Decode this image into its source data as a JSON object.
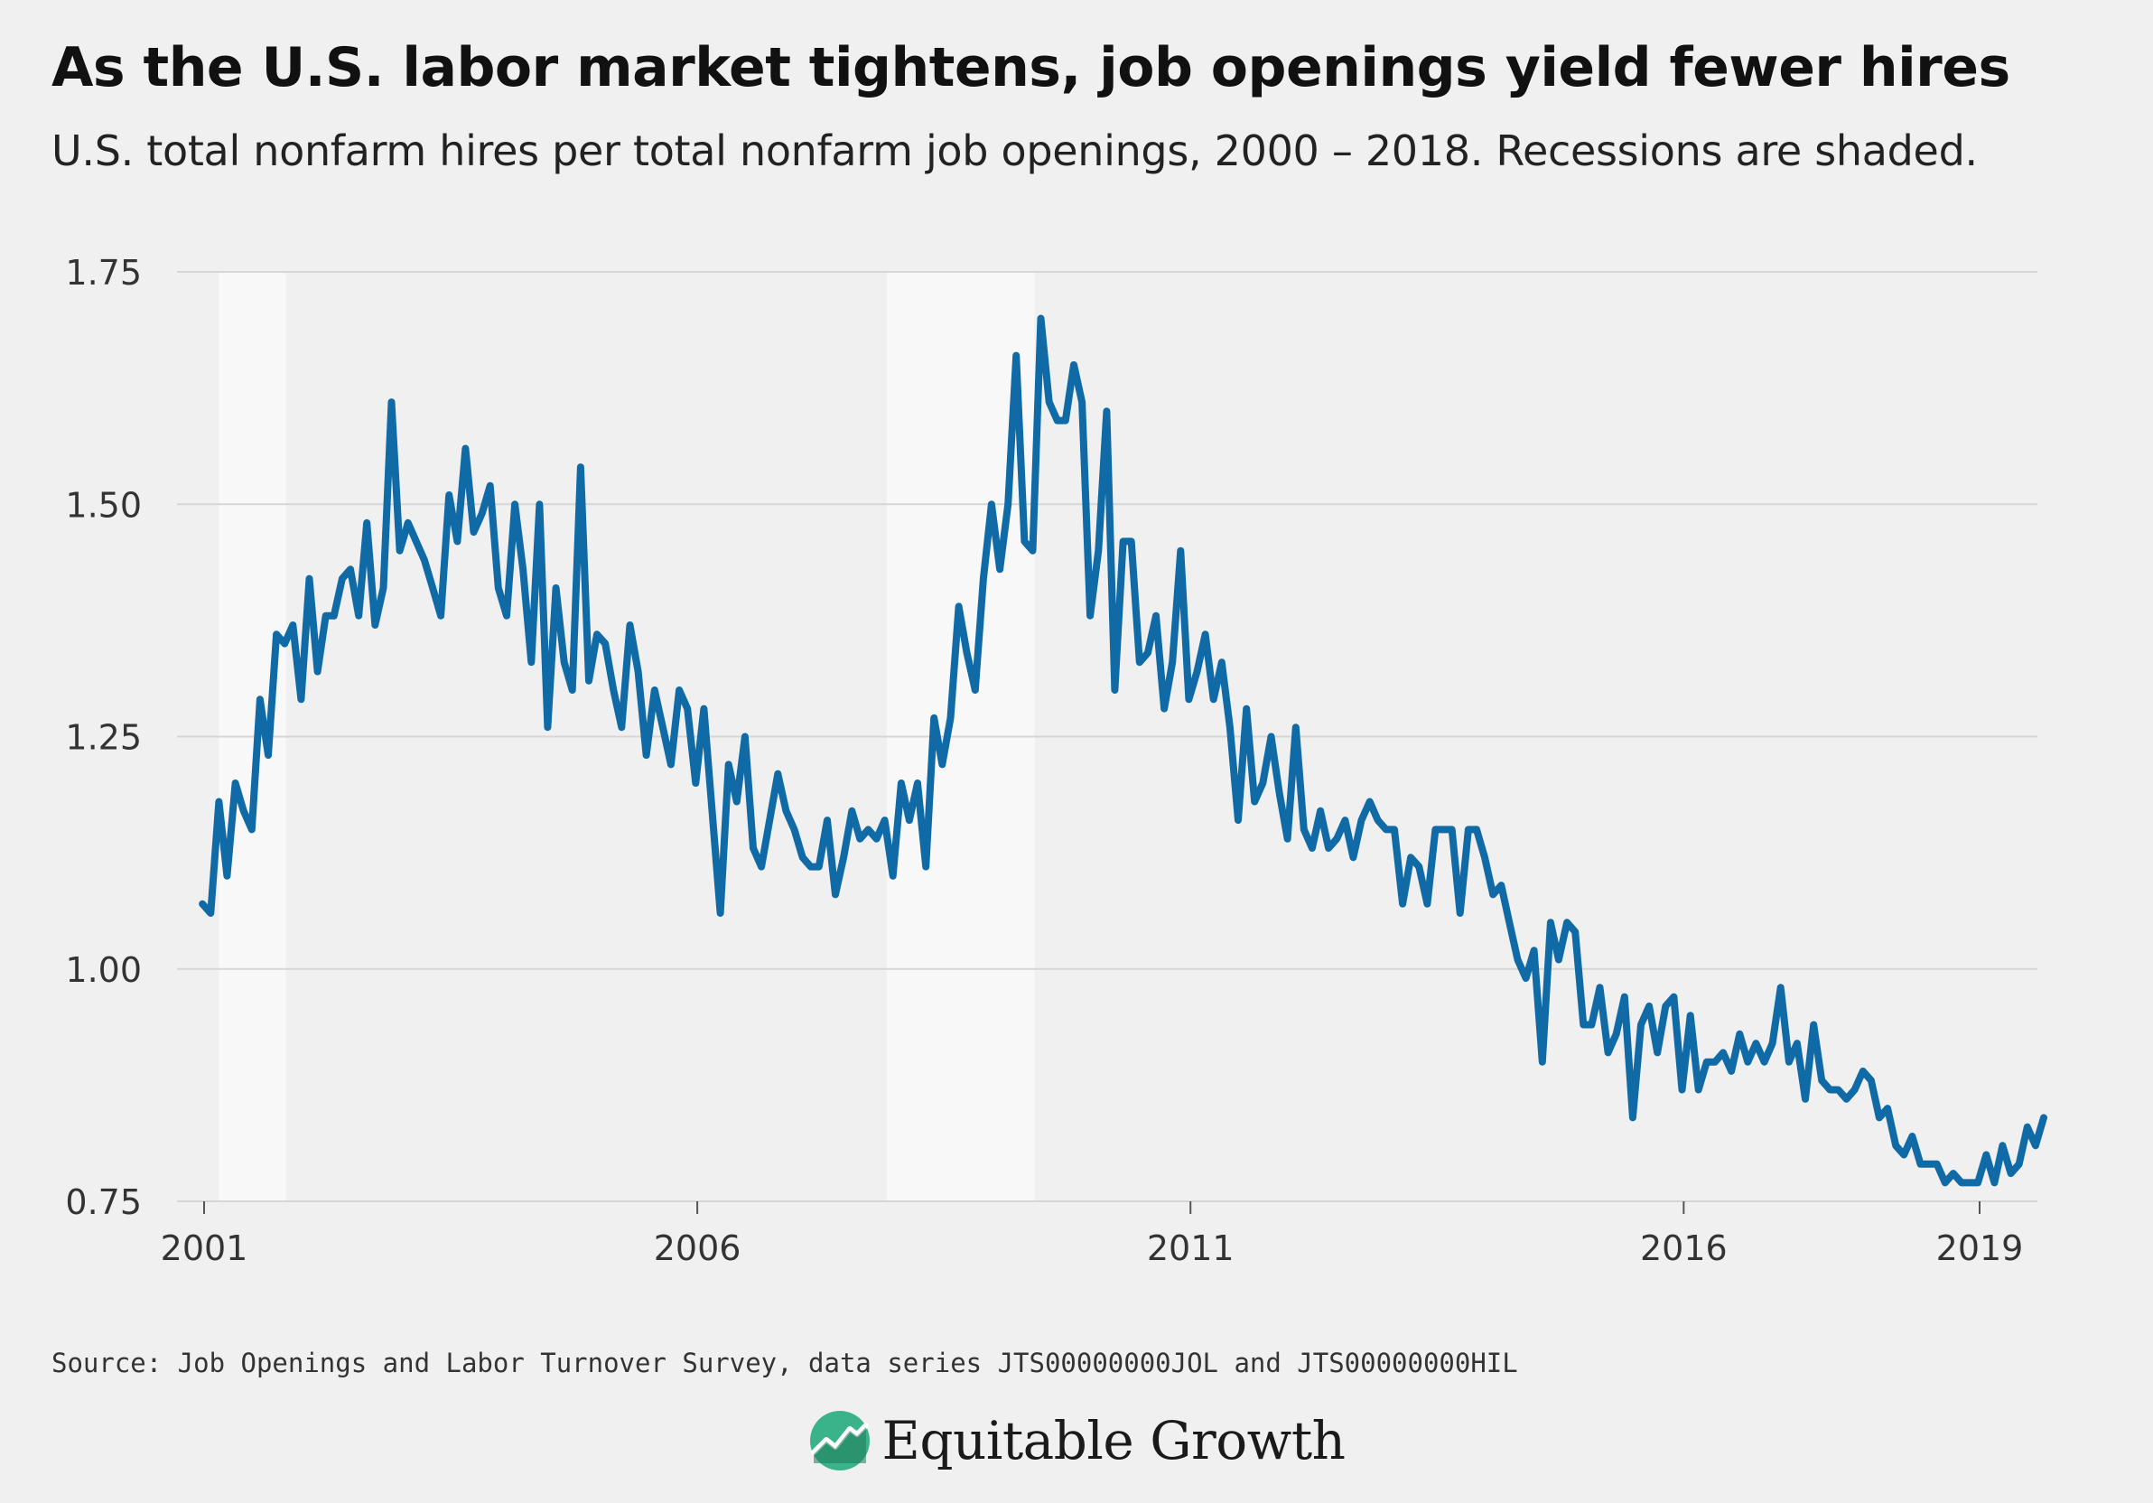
{
  "header": {
    "title": "As the U.S. labor market tightens, job openings yield fewer hires",
    "subtitle": "U.S. total nonfarm hires per total nonfarm job openings, 2000 – 2018. Recessions are shaded."
  },
  "footer": {
    "source": "Source: Job Openings and Labor Turnover Survey, data series JTS00000000JOL and JTS00000000HIL",
    "brand": "Equitable Growth"
  },
  "colors": {
    "line": "#0f6aa6",
    "background": "#f0f0f0",
    "recession": "#f8f8f8",
    "grid": "#d6d6d6",
    "logo": "#3bb38a"
  },
  "chart_data": {
    "type": "line",
    "title": "As the U.S. labor market tightens, job openings yield fewer hires",
    "subtitle": "U.S. total nonfarm hires per total nonfarm job openings, 2000 – 2018. Recessions are shaded.",
    "xlabel": "",
    "ylabel": "",
    "xlim": [
      2000.97,
      2019.6
    ],
    "ylim": [
      0.75,
      1.75
    ],
    "y_ticks": [
      "0.75",
      "1.00",
      "1.25",
      "1.50",
      "1.75"
    ],
    "y_tick_values": [
      0.75,
      1.0,
      1.25,
      1.5,
      1.75
    ],
    "x_ticks": [
      "2001",
      "2006",
      "2011",
      "2016",
      "2019"
    ],
    "x_tick_values": [
      2001,
      2006,
      2011,
      2016,
      2019
    ],
    "grid": true,
    "legend": "none",
    "recessions": [
      [
        2001.15,
        2001.83
      ],
      [
        2007.92,
        2009.42
      ]
    ],
    "series": [
      {
        "values": [
          [
            2000.983,
            1.07
          ],
          [
            2001.067,
            1.06
          ],
          [
            2001.15,
            1.18
          ],
          [
            2001.233,
            1.1
          ],
          [
            2001.317,
            1.2
          ],
          [
            2001.4,
            1.17
          ],
          [
            2001.483,
            1.15
          ],
          [
            2001.567,
            1.29
          ],
          [
            2001.65,
            1.23
          ],
          [
            2001.733,
            1.36
          ],
          [
            2001.817,
            1.35
          ],
          [
            2001.9,
            1.37
          ],
          [
            2001.983,
            1.29
          ],
          [
            2002.067,
            1.42
          ],
          [
            2002.15,
            1.32
          ],
          [
            2002.233,
            1.38
          ],
          [
            2002.317,
            1.38
          ],
          [
            2002.4,
            1.42
          ],
          [
            2002.483,
            1.43
          ],
          [
            2002.567,
            1.38
          ],
          [
            2002.65,
            1.48
          ],
          [
            2002.733,
            1.37
          ],
          [
            2002.817,
            1.41
          ],
          [
            2002.9,
            1.61
          ],
          [
            2002.983,
            1.45
          ],
          [
            2003.067,
            1.48
          ],
          [
            2003.15,
            1.46
          ],
          [
            2003.233,
            1.44
          ],
          [
            2003.317,
            1.41
          ],
          [
            2003.4,
            1.38
          ],
          [
            2003.483,
            1.51
          ],
          [
            2003.567,
            1.46
          ],
          [
            2003.65,
            1.56
          ],
          [
            2003.733,
            1.47
          ],
          [
            2003.817,
            1.49
          ],
          [
            2003.9,
            1.52
          ],
          [
            2003.983,
            1.41
          ],
          [
            2004.067,
            1.38
          ],
          [
            2004.15,
            1.5
          ],
          [
            2004.233,
            1.43
          ],
          [
            2004.317,
            1.33
          ],
          [
            2004.4,
            1.5
          ],
          [
            2004.483,
            1.26
          ],
          [
            2004.567,
            1.41
          ],
          [
            2004.65,
            1.33
          ],
          [
            2004.733,
            1.3
          ],
          [
            2004.817,
            1.54
          ],
          [
            2004.9,
            1.31
          ],
          [
            2004.983,
            1.36
          ],
          [
            2005.067,
            1.35
          ],
          [
            2005.15,
            1.3
          ],
          [
            2005.233,
            1.26
          ],
          [
            2005.317,
            1.37
          ],
          [
            2005.4,
            1.32
          ],
          [
            2005.483,
            1.23
          ],
          [
            2005.567,
            1.3
          ],
          [
            2005.65,
            1.26
          ],
          [
            2005.733,
            1.22
          ],
          [
            2005.817,
            1.3
          ],
          [
            2005.9,
            1.28
          ],
          [
            2005.983,
            1.2
          ],
          [
            2006.067,
            1.28
          ],
          [
            2006.15,
            1.17
          ],
          [
            2006.233,
            1.06
          ],
          [
            2006.317,
            1.22
          ],
          [
            2006.4,
            1.18
          ],
          [
            2006.483,
            1.25
          ],
          [
            2006.567,
            1.13
          ],
          [
            2006.65,
            1.11
          ],
          [
            2006.733,
            1.16
          ],
          [
            2006.817,
            1.21
          ],
          [
            2006.9,
            1.17
          ],
          [
            2006.983,
            1.15
          ],
          [
            2007.067,
            1.12
          ],
          [
            2007.15,
            1.11
          ],
          [
            2007.233,
            1.11
          ],
          [
            2007.317,
            1.16
          ],
          [
            2007.4,
            1.08
          ],
          [
            2007.483,
            1.12
          ],
          [
            2007.567,
            1.17
          ],
          [
            2007.65,
            1.14
          ],
          [
            2007.733,
            1.15
          ],
          [
            2007.817,
            1.14
          ],
          [
            2007.9,
            1.16
          ],
          [
            2007.983,
            1.1
          ],
          [
            2008.067,
            1.2
          ],
          [
            2008.15,
            1.16
          ],
          [
            2008.233,
            1.2
          ],
          [
            2008.317,
            1.11
          ],
          [
            2008.4,
            1.27
          ],
          [
            2008.483,
            1.22
          ],
          [
            2008.567,
            1.27
          ],
          [
            2008.65,
            1.39
          ],
          [
            2008.733,
            1.34
          ],
          [
            2008.817,
            1.3
          ],
          [
            2008.9,
            1.42
          ],
          [
            2008.983,
            1.5
          ],
          [
            2009.067,
            1.43
          ],
          [
            2009.15,
            1.5
          ],
          [
            2009.233,
            1.66
          ],
          [
            2009.317,
            1.46
          ],
          [
            2009.4,
            1.45
          ],
          [
            2009.483,
            1.7
          ],
          [
            2009.567,
            1.61
          ],
          [
            2009.65,
            1.59
          ],
          [
            2009.733,
            1.59
          ],
          [
            2009.817,
            1.65
          ],
          [
            2009.9,
            1.61
          ],
          [
            2009.983,
            1.38
          ],
          [
            2010.067,
            1.45
          ],
          [
            2010.15,
            1.6
          ],
          [
            2010.233,
            1.3
          ],
          [
            2010.317,
            1.46
          ],
          [
            2010.4,
            1.46
          ],
          [
            2010.483,
            1.33
          ],
          [
            2010.567,
            1.34
          ],
          [
            2010.65,
            1.38
          ],
          [
            2010.733,
            1.28
          ],
          [
            2010.817,
            1.33
          ],
          [
            2010.9,
            1.45
          ],
          [
            2010.983,
            1.29
          ],
          [
            2011.067,
            1.32
          ],
          [
            2011.15,
            1.36
          ],
          [
            2011.233,
            1.29
          ],
          [
            2011.317,
            1.33
          ],
          [
            2011.4,
            1.26
          ],
          [
            2011.483,
            1.16
          ],
          [
            2011.567,
            1.28
          ],
          [
            2011.65,
            1.18
          ],
          [
            2011.733,
            1.2
          ],
          [
            2011.817,
            1.25
          ],
          [
            2011.9,
            1.19
          ],
          [
            2011.983,
            1.14
          ],
          [
            2012.067,
            1.26
          ],
          [
            2012.15,
            1.15
          ],
          [
            2012.233,
            1.13
          ],
          [
            2012.317,
            1.17
          ],
          [
            2012.4,
            1.13
          ],
          [
            2012.483,
            1.14
          ],
          [
            2012.567,
            1.16
          ],
          [
            2012.65,
            1.12
          ],
          [
            2012.733,
            1.16
          ],
          [
            2012.817,
            1.18
          ],
          [
            2012.9,
            1.16
          ],
          [
            2012.983,
            1.15
          ],
          [
            2013.067,
            1.15
          ],
          [
            2013.15,
            1.07
          ],
          [
            2013.233,
            1.12
          ],
          [
            2013.317,
            1.11
          ],
          [
            2013.4,
            1.07
          ],
          [
            2013.483,
            1.15
          ],
          [
            2013.567,
            1.15
          ],
          [
            2013.65,
            1.15
          ],
          [
            2013.733,
            1.06
          ],
          [
            2013.817,
            1.15
          ],
          [
            2013.9,
            1.15
          ],
          [
            2013.983,
            1.12
          ],
          [
            2014.067,
            1.08
          ],
          [
            2014.15,
            1.09
          ],
          [
            2014.233,
            1.05
          ],
          [
            2014.317,
            1.01
          ],
          [
            2014.4,
            0.99
          ],
          [
            2014.483,
            1.02
          ],
          [
            2014.567,
            0.9
          ],
          [
            2014.65,
            1.05
          ],
          [
            2014.733,
            1.01
          ],
          [
            2014.817,
            1.05
          ],
          [
            2014.9,
            1.04
          ],
          [
            2014.983,
            0.94
          ],
          [
            2015.067,
            0.94
          ],
          [
            2015.15,
            0.98
          ],
          [
            2015.233,
            0.91
          ],
          [
            2015.317,
            0.93
          ],
          [
            2015.4,
            0.97
          ],
          [
            2015.483,
            0.84
          ],
          [
            2015.567,
            0.94
          ],
          [
            2015.65,
            0.96
          ],
          [
            2015.733,
            0.91
          ],
          [
            2015.817,
            0.96
          ],
          [
            2015.9,
            0.97
          ],
          [
            2015.983,
            0.87
          ],
          [
            2016.067,
            0.95
          ],
          [
            2016.15,
            0.87
          ],
          [
            2016.233,
            0.9
          ],
          [
            2016.317,
            0.9
          ],
          [
            2016.4,
            0.91
          ],
          [
            2016.483,
            0.89
          ],
          [
            2016.567,
            0.93
          ],
          [
            2016.65,
            0.9
          ],
          [
            2016.733,
            0.92
          ],
          [
            2016.817,
            0.9
          ],
          [
            2016.9,
            0.92
          ],
          [
            2016.983,
            0.98
          ],
          [
            2017.067,
            0.9
          ],
          [
            2017.15,
            0.92
          ],
          [
            2017.233,
            0.86
          ],
          [
            2017.317,
            0.94
          ],
          [
            2017.4,
            0.88
          ],
          [
            2017.483,
            0.87
          ],
          [
            2017.567,
            0.87
          ],
          [
            2017.65,
            0.86
          ],
          [
            2017.733,
            0.87
          ],
          [
            2017.817,
            0.89
          ],
          [
            2017.9,
            0.88
          ],
          [
            2017.983,
            0.84
          ],
          [
            2018.067,
            0.85
          ],
          [
            2018.15,
            0.81
          ],
          [
            2018.233,
            0.8
          ],
          [
            2018.317,
            0.82
          ],
          [
            2018.4,
            0.79
          ],
          [
            2018.483,
            0.79
          ],
          [
            2018.567,
            0.79
          ],
          [
            2018.65,
            0.77
          ],
          [
            2018.733,
            0.78
          ],
          [
            2018.817,
            0.77
          ],
          [
            2018.9,
            0.77
          ],
          [
            2018.983,
            0.77
          ],
          [
            2019.067,
            0.8
          ],
          [
            2019.15,
            0.77
          ],
          [
            2019.233,
            0.81
          ],
          [
            2019.317,
            0.78
          ],
          [
            2019.4,
            0.79
          ],
          [
            2019.483,
            0.83
          ],
          [
            2019.567,
            0.81
          ],
          [
            2019.65,
            0.84
          ]
        ]
      }
    ]
  }
}
